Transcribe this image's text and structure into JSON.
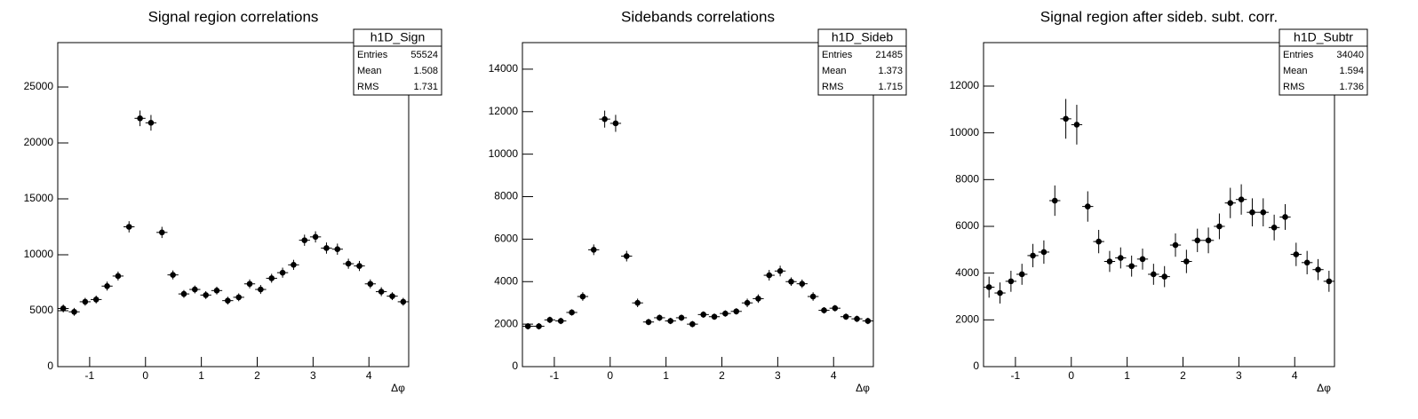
{
  "chart_data": [
    {
      "type": "histogram",
      "title": "Signal region correlations",
      "x_label": "Δφ",
      "color": "#000000",
      "bins": [
        -1.571,
        -1.374,
        -1.178,
        -0.982,
        -0.785,
        -0.589,
        -0.393,
        -0.196,
        0,
        0.196,
        0.393,
        0.589,
        0.785,
        0.982,
        1.178,
        1.374,
        1.571,
        1.767,
        1.963,
        2.16,
        2.356,
        2.553,
        2.749,
        2.945,
        3.142,
        3.338,
        3.534,
        3.731,
        3.927,
        4.123,
        4.32,
        4.516,
        4.712
      ],
      "values": [
        5200,
        4900,
        5800,
        6000,
        7200,
        8100,
        12500,
        22200,
        21800,
        12000,
        8200,
        6500,
        6900,
        6400,
        6800,
        5900,
        6200,
        7400,
        6900,
        7900,
        8400,
        9100,
        11300,
        11600,
        10600,
        10500,
        9200,
        9000,
        7400,
        6700,
        6300,
        5800
      ],
      "errors": [
        350,
        350,
        350,
        350,
        400,
        400,
        500,
        700,
        700,
        500,
        400,
        350,
        350,
        350,
        350,
        350,
        350,
        400,
        400,
        400,
        450,
        450,
        500,
        500,
        500,
        500,
        450,
        450,
        400,
        400,
        350,
        350
      ],
      "xlim": [
        -1.571,
        4.712
      ],
      "xticks": [
        -1,
        0,
        1,
        2,
        3,
        4
      ],
      "ylim": [
        0,
        28970
      ],
      "yticks": [
        0,
        5000,
        10000,
        15000,
        20000,
        25000
      ],
      "stats": {
        "name": "h1D_Sign",
        "rows": [
          {
            "label": "Entries",
            "value": 55524
          },
          {
            "label": "Mean",
            "value": 1.508
          },
          {
            "label": "RMS",
            "value": 1.731
          }
        ]
      }
    },
    {
      "type": "histogram",
      "title": "Sidebands correlations",
      "x_label": "Δφ",
      "color": "#000000",
      "bins": [
        -1.571,
        -1.374,
        -1.178,
        -0.982,
        -0.785,
        -0.589,
        -0.393,
        -0.196,
        0,
        0.196,
        0.393,
        0.589,
        0.785,
        0.982,
        1.178,
        1.374,
        1.571,
        1.767,
        1.963,
        2.16,
        2.356,
        2.553,
        2.749,
        2.945,
        3.142,
        3.338,
        3.534,
        3.731,
        3.927,
        4.123,
        4.32,
        4.516,
        4.712
      ],
      "values": [
        1900,
        1900,
        2200,
        2150,
        2550,
        3300,
        5500,
        11650,
        11450,
        5200,
        3000,
        2100,
        2300,
        2150,
        2300,
        2000,
        2450,
        2350,
        2500,
        2600,
        3000,
        3200,
        4300,
        4500,
        4000,
        3900,
        3300,
        2650,
        2750,
        2350,
        2250,
        2150
      ],
      "errors": [
        150,
        150,
        150,
        150,
        150,
        200,
        250,
        400,
        400,
        250,
        200,
        150,
        150,
        150,
        150,
        150,
        150,
        150,
        150,
        150,
        200,
        200,
        250,
        250,
        200,
        200,
        200,
        150,
        150,
        150,
        150,
        150
      ],
      "xlim": [
        -1.571,
        4.712
      ],
      "xticks": [
        -1,
        0,
        1,
        2,
        3,
        4
      ],
      "ylim": [
        0,
        15250
      ],
      "yticks": [
        0,
        2000,
        4000,
        6000,
        8000,
        10000,
        12000,
        14000
      ],
      "stats": {
        "name": "h1D_Sideb",
        "rows": [
          {
            "label": "Entries",
            "value": 21485
          },
          {
            "label": "Mean",
            "value": 1.373
          },
          {
            "label": "RMS",
            "value": 1.715
          }
        ]
      }
    },
    {
      "type": "histogram",
      "title": "Signal region after sideb. subt. corr.",
      "x_label": "Δφ",
      "color": "#000000",
      "bins": [
        -1.571,
        -1.374,
        -1.178,
        -0.982,
        -0.785,
        -0.589,
        -0.393,
        -0.196,
        0,
        0.196,
        0.393,
        0.589,
        0.785,
        0.982,
        1.178,
        1.374,
        1.571,
        1.767,
        1.963,
        2.16,
        2.356,
        2.553,
        2.749,
        2.945,
        3.142,
        3.338,
        3.534,
        3.731,
        3.927,
        4.123,
        4.32,
        4.516,
        4.712
      ],
      "values": [
        3400,
        3150,
        3650,
        3950,
        4750,
        4900,
        7100,
        10600,
        10350,
        6850,
        5350,
        4500,
        4650,
        4300,
        4600,
        3950,
        3850,
        5200,
        4500,
        5400,
        5400,
        6000,
        7000,
        7150,
        6600,
        6600,
        5950,
        6400,
        4800,
        4450,
        4150,
        3650
      ],
      "errors": [
        450,
        450,
        450,
        450,
        500,
        500,
        650,
        850,
        850,
        650,
        500,
        450,
        450,
        450,
        450,
        450,
        450,
        500,
        500,
        500,
        550,
        550,
        650,
        650,
        600,
        600,
        550,
        550,
        500,
        500,
        450,
        450
      ],
      "xlim": [
        -1.571,
        4.712
      ],
      "xticks": [
        -1,
        0,
        1,
        2,
        3,
        4
      ],
      "ylim": [
        0,
        13860
      ],
      "yticks": [
        0,
        2000,
        4000,
        6000,
        8000,
        10000,
        12000
      ],
      "stats": {
        "name": "h1D_Subtr",
        "rows": [
          {
            "label": "Entries",
            "value": 34040
          },
          {
            "label": "Mean",
            "value": 1.594
          },
          {
            "label": "RMS",
            "value": 1.736
          }
        ]
      }
    }
  ]
}
